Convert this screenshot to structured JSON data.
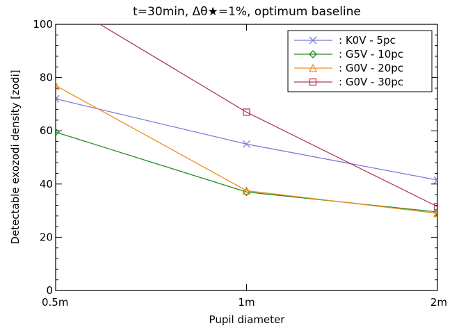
{
  "chart_data": {
    "type": "line",
    "title": "t=30min, Δθ★=1%, optimum baseline",
    "xlabel": "Pupil diameter",
    "ylabel": "Detectable exozodi density [zodi]",
    "categories": [
      "0.5m",
      "1m",
      "2m"
    ],
    "ylim": [
      0,
      100
    ],
    "yticks": [
      0,
      20,
      40,
      60,
      80,
      100
    ],
    "grid": false,
    "legend_position": "top-right",
    "series": [
      {
        "name": ": K0V - 5pc",
        "color": "#7b7bd6",
        "marker": "x",
        "values": [
          72,
          55,
          41.5
        ]
      },
      {
        "name": ": G5V - 10pc",
        "color": "#1e8c1e",
        "marker": "diamond",
        "values": [
          59.5,
          37,
          29.5
        ]
      },
      {
        "name": ": G0V - 20pc",
        "color": "#f28c1e",
        "marker": "triangle",
        "values": [
          77,
          37.5,
          29
        ]
      },
      {
        "name": ": G0V - 30pc",
        "color": "#b03a66",
        "marker": "square",
        "values": [
          110,
          67,
          31.5
        ]
      }
    ]
  }
}
